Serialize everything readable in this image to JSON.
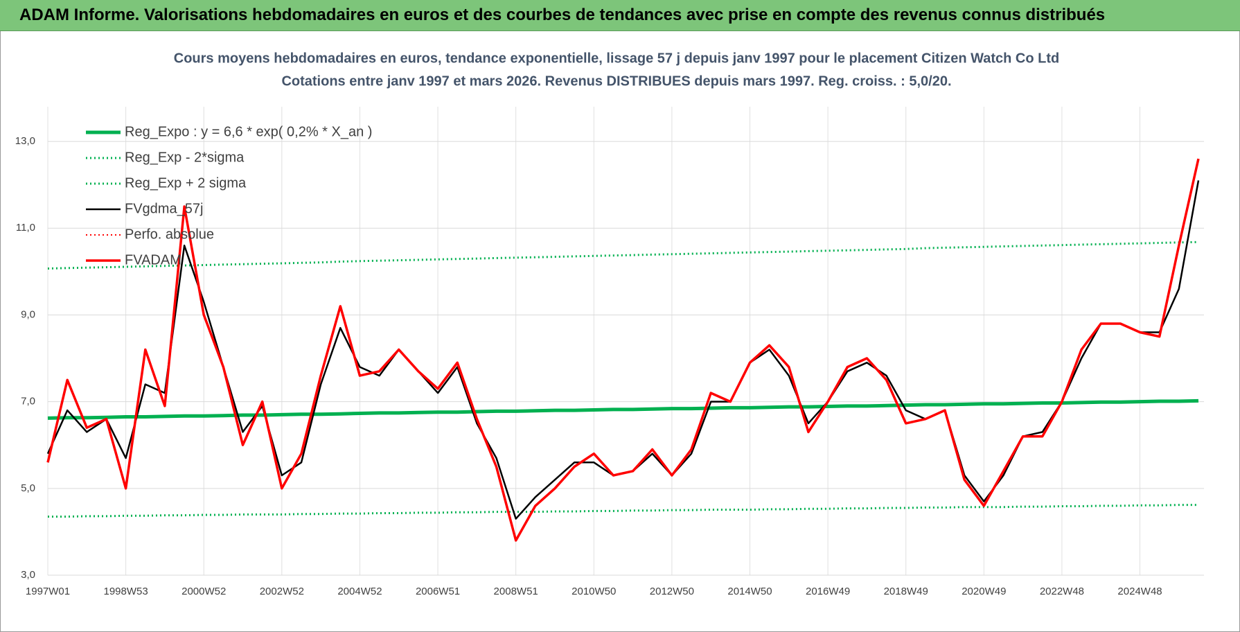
{
  "header": {
    "title": "ADAM Informe. Valorisations hebdomadaires en euros et des courbes de tendances avec prise en compte des revenus connus distribués"
  },
  "chart_data": {
    "type": "line",
    "title": "Cours moyens hebdomadaires en euros, tendance exponentielle, lissage 57 j depuis janv 1997 pour le placement Citizen Watch Co Ltd",
    "subtitle": "Cotations entre janv 1997 et mars 2026. Revenus DISTRIBUES depuis mars 1997. Reg. croiss. : 5,0/20.",
    "categories": [
      "1997W01",
      null,
      null,
      null,
      "1998W53",
      null,
      null,
      null,
      "2000W52",
      null,
      null,
      null,
      "2002W52",
      null,
      null,
      null,
      "2004W52",
      null,
      null,
      null,
      "2006W51",
      null,
      null,
      null,
      "2008W51",
      null,
      null,
      null,
      "2010W50",
      null,
      null,
      null,
      "2012W50",
      null,
      null,
      null,
      "2014W50",
      null,
      null,
      null,
      "2016W49",
      null,
      null,
      null,
      "2018W49",
      null,
      null,
      null,
      "2020W49",
      null,
      null,
      null,
      "2022W48",
      null,
      null,
      null,
      "2024W48",
      null,
      null,
      null
    ],
    "ylim": [
      3,
      13.8
    ],
    "yticks": [
      {
        "value": 3,
        "label": "3,0"
      },
      {
        "value": 5,
        "label": "5,0"
      },
      {
        "value": 7,
        "label": "7,0"
      },
      {
        "value": 9,
        "label": "9,0"
      },
      {
        "value": 11,
        "label": "11,0"
      },
      {
        "value": 13,
        "label": "13,0"
      }
    ],
    "grid": true,
    "legend": "top-left",
    "series": [
      {
        "name": "Reg_Expo : y = 6,6 * exp( 0,2% *  X_an )",
        "color": "#00b050",
        "line_style": "solid",
        "line_width": 5,
        "values": [
          6.62,
          6.63,
          6.63,
          6.64,
          6.65,
          6.65,
          6.66,
          6.67,
          6.67,
          6.68,
          6.69,
          6.69,
          6.7,
          6.71,
          6.71,
          6.72,
          6.73,
          6.74,
          6.74,
          6.75,
          6.76,
          6.76,
          6.77,
          6.78,
          6.78,
          6.79,
          6.8,
          6.8,
          6.81,
          6.82,
          6.82,
          6.83,
          6.84,
          6.84,
          6.85,
          6.86,
          6.86,
          6.87,
          6.88,
          6.88,
          6.89,
          6.9,
          6.9,
          6.91,
          6.92,
          6.93,
          6.93,
          6.94,
          6.95,
          6.95,
          6.96,
          6.97,
          6.97,
          6.98,
          6.99,
          6.99,
          7.0,
          7.01,
          7.01,
          7.02
        ]
      },
      {
        "name": "Reg_Exp - 2*sigma",
        "color": "#00b050",
        "line_style": "dotted",
        "line_width": 3,
        "values": [
          4.35,
          4.35,
          4.36,
          4.36,
          4.37,
          4.37,
          4.38,
          4.38,
          4.39,
          4.39,
          4.4,
          4.4,
          4.4,
          4.41,
          4.41,
          4.42,
          4.42,
          4.43,
          4.43,
          4.44,
          4.44,
          4.45,
          4.45,
          4.46,
          4.46,
          4.46,
          4.47,
          4.47,
          4.48,
          4.48,
          4.49,
          4.49,
          4.5,
          4.5,
          4.51,
          4.51,
          4.51,
          4.52,
          4.52,
          4.53,
          4.53,
          4.54,
          4.54,
          4.55,
          4.55,
          4.56,
          4.56,
          4.57,
          4.57,
          4.57,
          4.58,
          4.58,
          4.59,
          4.59,
          4.6,
          4.6,
          4.61,
          4.61,
          4.62,
          4.62
        ]
      },
      {
        "name": "Reg_Exp + 2 sigma",
        "color": "#00b050",
        "line_style": "dotted",
        "line_width": 3,
        "values": [
          10.07,
          10.08,
          10.09,
          10.1,
          10.11,
          10.12,
          10.13,
          10.14,
          10.15,
          10.16,
          10.17,
          10.18,
          10.19,
          10.2,
          10.21,
          10.23,
          10.24,
          10.25,
          10.26,
          10.27,
          10.28,
          10.29,
          10.3,
          10.31,
          10.32,
          10.33,
          10.34,
          10.35,
          10.36,
          10.37,
          10.38,
          10.39,
          10.4,
          10.41,
          10.42,
          10.43,
          10.44,
          10.45,
          10.46,
          10.47,
          10.48,
          10.49,
          10.5,
          10.51,
          10.52,
          10.54,
          10.55,
          10.56,
          10.57,
          10.58,
          10.59,
          10.6,
          10.61,
          10.62,
          10.63,
          10.64,
          10.65,
          10.66,
          10.67,
          10.68
        ]
      },
      {
        "name": "FVgdma_57j",
        "color": "#000000",
        "line_style": "solid",
        "line_width": 2.5,
        "values": [
          5.8,
          6.8,
          6.3,
          6.6,
          5.7,
          7.4,
          7.2,
          10.6,
          9.3,
          7.8,
          6.3,
          6.9,
          5.3,
          5.6,
          7.4,
          8.7,
          7.8,
          7.6,
          8.2,
          7.7,
          7.2,
          7.8,
          6.5,
          5.7,
          4.3,
          4.8,
          5.2,
          5.6,
          5.6,
          5.3,
          5.4,
          5.8,
          5.3,
          5.8,
          7.0,
          7.0,
          7.9,
          8.2,
          7.6,
          6.5,
          7.0,
          7.7,
          7.9,
          7.6,
          6.8,
          6.6,
          6.8,
          5.3,
          4.7,
          5.3,
          6.2,
          6.3,
          7.0,
          8.0,
          8.8,
          8.8,
          8.6,
          8.6,
          9.6,
          12.1
        ]
      },
      {
        "name": "Perfo. absolue",
        "color": "#ff0000",
        "line_style": "dotted",
        "line_width": 2,
        "values": [
          null,
          null,
          null,
          null,
          null,
          null,
          null,
          null,
          null,
          null,
          null,
          null,
          null,
          null,
          null,
          null,
          null,
          null,
          null,
          null,
          null,
          null,
          null,
          null,
          null,
          null,
          null,
          null,
          null,
          null,
          null,
          null,
          null,
          null,
          null,
          null,
          null,
          null,
          null,
          null,
          null,
          null,
          null,
          null,
          null,
          null,
          null,
          null,
          null,
          null,
          null,
          null,
          null,
          null,
          null,
          null,
          null,
          null,
          null,
          null
        ]
      },
      {
        "name": "FVADAM",
        "color": "#ff0000",
        "line_style": "solid",
        "line_width": 3.5,
        "values": [
          5.6,
          7.5,
          6.4,
          6.6,
          5.0,
          8.2,
          6.9,
          11.5,
          9.0,
          7.8,
          6.0,
          7.0,
          5.0,
          5.8,
          7.6,
          9.2,
          7.6,
          7.7,
          8.2,
          7.7,
          7.3,
          7.9,
          6.6,
          5.5,
          3.8,
          4.6,
          5.0,
          5.5,
          5.8,
          5.3,
          5.4,
          5.9,
          5.3,
          5.9,
          7.2,
          7.0,
          7.9,
          8.3,
          7.8,
          6.3,
          7.0,
          7.8,
          8.0,
          7.5,
          6.5,
          6.6,
          6.8,
          5.2,
          4.6,
          5.4,
          6.2,
          6.2,
          7.0,
          8.2,
          8.8,
          8.8,
          8.6,
          8.5,
          10.6,
          12.6
        ]
      }
    ]
  }
}
